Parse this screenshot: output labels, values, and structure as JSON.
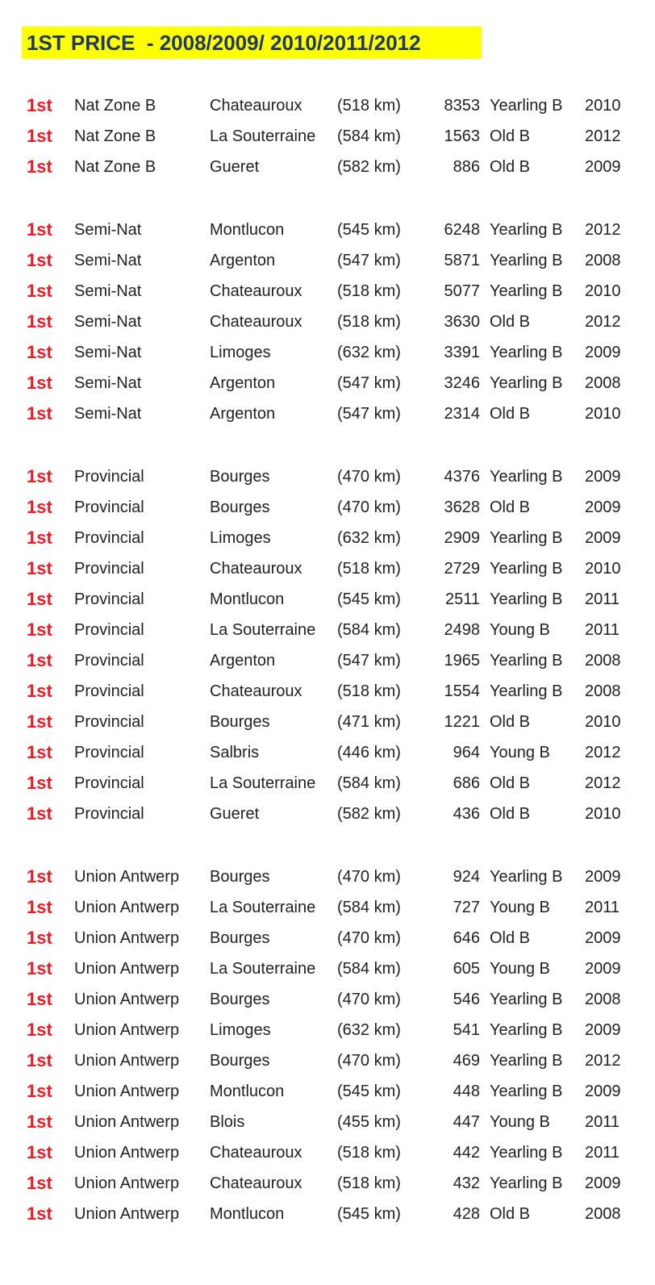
{
  "page": {
    "background": "#ffffff"
  },
  "title": {
    "text": "1ST PRICE  - 2008/2009/ 2010/2011/2012",
    "highlight_color": "#ffff00",
    "text_color": "#1f3864"
  },
  "table": {
    "rank_color": "#ed1b24",
    "text_color": "#222222",
    "sections": [
      {
        "rows": [
          {
            "rank": "1st",
            "category": "Nat Zone B",
            "location": "Chateauroux",
            "distance": "(518 km)",
            "count": "8353",
            "bird_class": "Yearling B",
            "year": "2010"
          },
          {
            "rank": "1st",
            "category": "Nat Zone B",
            "location": "La Souterraine",
            "distance": "(584 km)",
            "count": "1563",
            "bird_class": "Old B",
            "year": "2012"
          },
          {
            "rank": "1st",
            "category": "Nat Zone B",
            "location": "Gueret",
            "distance": "(582 km)",
            "count": "886",
            "bird_class": "Old B",
            "year": "2009"
          }
        ]
      },
      {
        "rows": [
          {
            "rank": "1st",
            "category": "Semi-Nat",
            "location": "Montlucon",
            "distance": "(545 km)",
            "count": "6248",
            "bird_class": "Yearling B",
            "year": "2012"
          },
          {
            "rank": "1st",
            "category": "Semi-Nat",
            "location": "Argenton",
            "distance": "(547 km)",
            "count": "5871",
            "bird_class": "Yearling B",
            "year": "2008"
          },
          {
            "rank": "1st",
            "category": "Semi-Nat",
            "location": "Chateauroux",
            "distance": "(518 km)",
            "count": "5077",
            "bird_class": "Yearling B",
            "year": "2010"
          },
          {
            "rank": "1st",
            "category": "Semi-Nat",
            "location": "Chateauroux",
            "distance": "(518 km)",
            "count": "3630",
            "bird_class": "Old B",
            "year": "2012"
          },
          {
            "rank": "1st",
            "category": "Semi-Nat",
            "location": "Limoges",
            "distance": "(632 km)",
            "count": "3391",
            "bird_class": "Yearling B",
            "year": "2009"
          },
          {
            "rank": "1st",
            "category": "Semi-Nat",
            "location": "Argenton",
            "distance": "(547 km)",
            "count": "3246",
            "bird_class": "Yearling B",
            "year": "2008"
          },
          {
            "rank": "1st",
            "category": "Semi-Nat",
            "location": "Argenton",
            "distance": "(547 km)",
            "count": "2314",
            "bird_class": "Old B",
            "year": "2010"
          }
        ]
      },
      {
        "rows": [
          {
            "rank": "1st",
            "category": "Provincial",
            "location": "Bourges",
            "distance": "(470 km)",
            "count": "4376",
            "bird_class": "Yearling B",
            "year": "2009"
          },
          {
            "rank": "1st",
            "category": "Provincial",
            "location": "Bourges",
            "distance": "(470 km)",
            "count": "3628",
            "bird_class": "Old B",
            "year": "2009"
          },
          {
            "rank": "1st",
            "category": "Provincial",
            "location": "Limoges",
            "distance": "(632 km)",
            "count": "2909",
            "bird_class": "Yearling B",
            "year": "2009"
          },
          {
            "rank": "1st",
            "category": "Provincial",
            "location": "Chateauroux",
            "distance": "(518 km)",
            "count": "2729",
            "bird_class": "Yearling B",
            "year": "2010"
          },
          {
            "rank": "1st",
            "category": "Provincial",
            "location": "Montlucon",
            "distance": "(545 km)",
            "count": "2511",
            "bird_class": "Yearling B",
            "year": "2011"
          },
          {
            "rank": "1st",
            "category": "Provincial",
            "location": "La Souterraine",
            "distance": "(584 km)",
            "count": "2498",
            "bird_class": "Young B",
            "year": "2011"
          },
          {
            "rank": "1st",
            "category": "Provincial",
            "location": "Argenton",
            "distance": "(547 km)",
            "count": "1965",
            "bird_class": "Yearling B",
            "year": "2008"
          },
          {
            "rank": "1st",
            "category": "Provincial",
            "location": "Chateauroux",
            "distance": "(518 km)",
            "count": "1554",
            "bird_class": "Yearling B",
            "year": "2008"
          },
          {
            "rank": "1st",
            "category": "Provincial",
            "location": "Bourges",
            "distance": "(471 km)",
            "count": "1221",
            "bird_class": "Old B",
            "year": "2010"
          },
          {
            "rank": "1st",
            "category": "Provincial",
            "location": "Salbris",
            "distance": "(446 km)",
            "count": "964",
            "bird_class": "Young B",
            "year": "2012"
          },
          {
            "rank": "1st",
            "category": "Provincial",
            "location": "La Souterraine",
            "distance": "(584 km)",
            "count": "686",
            "bird_class": "Old B",
            "year": "2012"
          },
          {
            "rank": "1st",
            "category": "Provincial",
            "location": "Gueret",
            "distance": "(582 km)",
            "count": "436",
            "bird_class": "Old B",
            "year": "2010"
          }
        ]
      },
      {
        "rows": [
          {
            "rank": "1st",
            "category": "Union Antwerp",
            "location": "Bourges",
            "distance": "(470 km)",
            "count": "924",
            "bird_class": "Yearling B",
            "year": "2009"
          },
          {
            "rank": "1st",
            "category": "Union Antwerp",
            "location": "La Souterraine",
            "distance": "(584 km)",
            "count": "727",
            "bird_class": "Young B",
            "year": "2011"
          },
          {
            "rank": "1st",
            "category": "Union Antwerp",
            "location": "Bourges",
            "distance": "(470 km)",
            "count": "646",
            "bird_class": "Old B",
            "year": "2009"
          },
          {
            "rank": "1st",
            "category": "Union Antwerp",
            "location": "La Souterraine",
            "distance": "(584 km)",
            "count": "605",
            "bird_class": "Young B",
            "year": "2009"
          },
          {
            "rank": "1st",
            "category": "Union Antwerp",
            "location": "Bourges",
            "distance": "(470 km)",
            "count": "546",
            "bird_class": "Yearling B",
            "year": "2008"
          },
          {
            "rank": "1st",
            "category": "Union Antwerp",
            "location": "Limoges",
            "distance": "(632 km)",
            "count": "541",
            "bird_class": "Yearling B",
            "year": "2009"
          },
          {
            "rank": "1st",
            "category": "Union Antwerp",
            "location": "Bourges",
            "distance": "(470 km)",
            "count": "469",
            "bird_class": "Yearling B",
            "year": "2012"
          },
          {
            "rank": "1st",
            "category": "Union Antwerp",
            "location": "Montlucon",
            "distance": "(545 km)",
            "count": "448",
            "bird_class": "Yearling B",
            "year": "2009"
          },
          {
            "rank": "1st",
            "category": "Union Antwerp",
            "location": "Blois",
            "distance": "(455 km)",
            "count": "447",
            "bird_class": "Young B",
            "year": "2011"
          },
          {
            "rank": "1st",
            "category": "Union Antwerp",
            "location": "Chateauroux",
            "distance": "(518 km)",
            "count": "442",
            "bird_class": "Yearling B",
            "year": "2011"
          },
          {
            "rank": "1st",
            "category": "Union Antwerp",
            "location": "Chateauroux",
            "distance": "(518 km)",
            "count": "432",
            "bird_class": "Yearling B",
            "year": "2009"
          },
          {
            "rank": "1st",
            "category": "Union Antwerp",
            "location": "Montlucon",
            "distance": "(545 km)",
            "count": "428",
            "bird_class": "Old B",
            "year": "2008"
          }
        ]
      }
    ]
  }
}
